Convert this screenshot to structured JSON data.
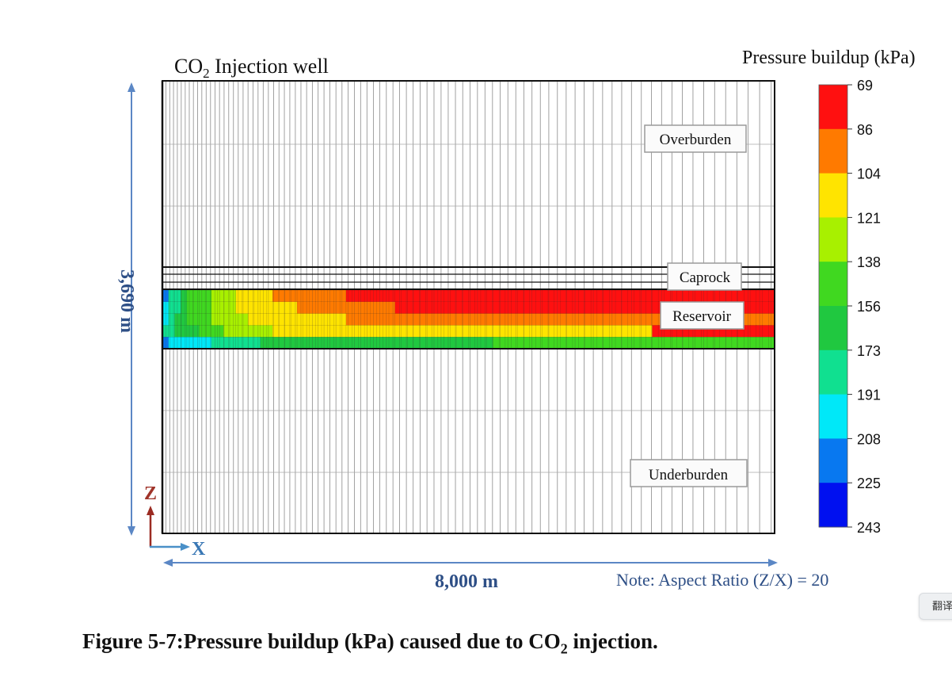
{
  "figure": {
    "caption_parts": [
      "Figure 5-7:Pressure buildup (kPa) caused due to CO",
      "2",
      " injection."
    ]
  },
  "chart_data": {
    "type": "heatmap",
    "well_label_parts": [
      "CO",
      "2",
      " Injection well"
    ],
    "colorbar": {
      "title": "Pressure buildup (kPa)",
      "ticks": [
        69,
        86,
        104,
        121,
        138,
        156,
        173,
        191,
        208,
        225,
        243
      ],
      "colors": [
        "#ff1010",
        "#ff7a00",
        "#ffe400",
        "#a8f000",
        "#40d820",
        "#20c840",
        "#10e090",
        "#00e8f8",
        "#0878f0",
        "#0010f0"
      ]
    },
    "layers": [
      "Overburden",
      "Caprock",
      "Reservoir",
      "Underburden"
    ],
    "vertical_extent_label": "3,690 m",
    "horizontal_extent_label": "8,000 m",
    "axis_labels": {
      "z": "Z",
      "x": "X"
    },
    "note": "Note: Aspect Ratio (Z/X) = 20",
    "reservoir_pressure_grid_bins": [
      [
        9,
        7,
        7,
        6,
        5,
        5,
        5,
        5,
        4,
        4,
        4,
        4,
        3,
        3,
        3,
        3,
        3,
        3,
        2,
        2,
        2,
        2,
        2,
        2,
        2,
        2,
        2,
        2,
        2,
        2,
        1,
        1,
        1,
        1,
        1,
        1,
        1,
        1,
        1,
        1,
        1,
        1,
        1,
        1,
        1,
        1,
        1,
        1,
        1,
        1,
        1,
        1,
        1,
        1,
        1,
        1,
        1,
        1,
        1,
        1,
        1,
        1,
        1,
        1,
        1,
        1,
        1,
        1,
        1,
        1,
        1,
        1,
        1,
        1,
        1,
        1,
        1,
        1,
        1,
        1,
        1,
        1,
        1,
        1,
        1,
        1,
        1,
        1,
        1,
        1,
        1,
        1,
        1,
        1,
        1,
        1,
        1,
        1,
        1,
        1
      ],
      [
        8,
        7,
        7,
        6,
        5,
        5,
        5,
        5,
        4,
        4,
        4,
        4,
        3,
        3,
        3,
        3,
        3,
        3,
        3,
        3,
        3,
        3,
        2,
        2,
        2,
        2,
        2,
        2,
        2,
        2,
        2,
        2,
        2,
        2,
        2,
        2,
        2,
        2,
        1,
        1,
        1,
        1,
        1,
        1,
        1,
        1,
        1,
        1,
        1,
        1,
        1,
        1,
        1,
        1,
        1,
        1,
        1,
        1,
        1,
        1,
        1,
        1,
        1,
        1,
        1,
        1,
        1,
        1,
        1,
        1,
        1,
        1,
        1,
        1,
        1,
        1,
        1,
        1,
        1,
        1,
        1,
        1,
        1,
        1,
        1,
        1,
        1,
        1,
        1,
        1,
        1,
        1,
        1,
        1,
        1,
        1,
        1,
        1,
        1,
        1
      ],
      [
        8,
        7,
        6,
        6,
        5,
        5,
        5,
        5,
        4,
        4,
        4,
        4,
        4,
        4,
        3,
        3,
        3,
        3,
        3,
        3,
        3,
        3,
        3,
        3,
        3,
        3,
        3,
        3,
        3,
        3,
        2,
        2,
        2,
        2,
        2,
        2,
        2,
        2,
        2,
        2,
        2,
        2,
        2,
        2,
        2,
        2,
        2,
        2,
        2,
        2,
        2,
        2,
        2,
        2,
        2,
        2,
        2,
        2,
        2,
        2,
        2,
        2,
        2,
        2,
        2,
        2,
        2,
        2,
        2,
        2,
        2,
        2,
        2,
        2,
        2,
        2,
        2,
        2,
        2,
        2,
        2,
        2,
        2,
        2,
        2,
        2,
        2,
        2,
        2,
        2,
        2,
        2,
        2,
        2,
        2,
        2,
        2,
        2,
        2,
        2
      ],
      [
        7,
        7,
        6,
        6,
        6,
        6,
        5,
        5,
        5,
        5,
        4,
        4,
        4,
        4,
        4,
        4,
        4,
        4,
        3,
        3,
        3,
        3,
        3,
        3,
        3,
        3,
        3,
        3,
        3,
        3,
        3,
        3,
        3,
        3,
        3,
        3,
        3,
        3,
        3,
        3,
        3,
        3,
        3,
        3,
        3,
        3,
        3,
        3,
        3,
        3,
        3,
        3,
        3,
        3,
        3,
        3,
        3,
        3,
        3,
        3,
        3,
        3,
        3,
        3,
        3,
        3,
        3,
        3,
        3,
        3,
        3,
        3,
        3,
        3,
        3,
        3,
        3,
        3,
        3,
        3,
        1,
        1,
        1,
        1,
        1,
        1,
        1,
        1,
        1,
        1,
        1,
        1,
        1,
        1,
        1,
        1,
        1,
        1,
        1,
        1
      ],
      [
        9,
        8,
        8,
        8,
        8,
        8,
        8,
        8,
        7,
        7,
        7,
        7,
        7,
        7,
        7,
        7,
        6,
        6,
        6,
        6,
        6,
        6,
        6,
        6,
        6,
        6,
        6,
        6,
        6,
        6,
        6,
        6,
        6,
        6,
        6,
        6,
        6,
        6,
        6,
        6,
        6,
        6,
        6,
        6,
        6,
        6,
        6,
        6,
        6,
        6,
        6,
        6,
        6,
        6,
        5,
        5,
        5,
        5,
        5,
        5,
        5,
        5,
        5,
        5,
        5,
        5,
        5,
        5,
        5,
        5,
        5,
        5,
        5,
        5,
        5,
        5,
        5,
        5,
        5,
        5,
        5,
        5,
        5,
        5,
        5,
        5,
        5,
        5,
        5,
        5,
        5,
        5,
        5,
        5,
        5,
        5,
        5,
        5,
        5,
        5
      ]
    ]
  }
}
